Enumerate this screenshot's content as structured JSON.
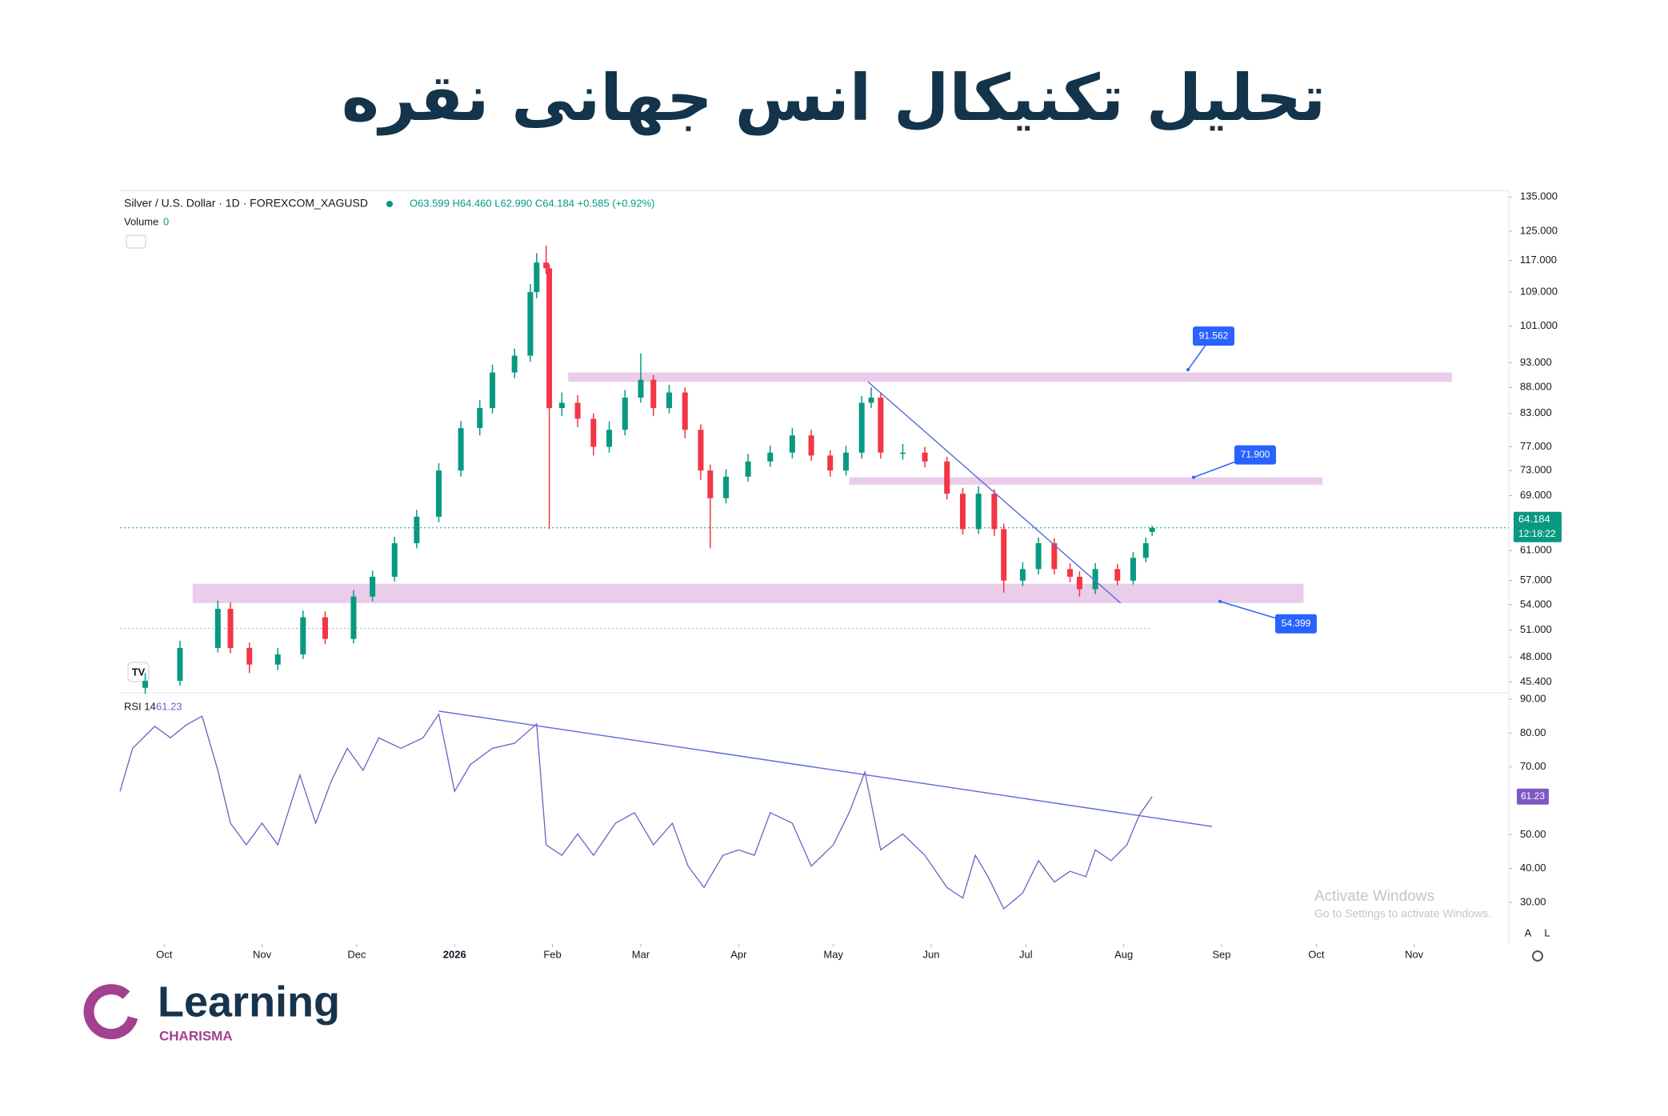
{
  "title": "تحلیل تکنیکال انس جهانی نقره",
  "chart_data": [
    {
      "type": "candlestick",
      "title": "Silver / U.S. Dollar · 1D · FOREXCOM_XAGUSD",
      "ohlc_text": "O63.599 H64.460 L62.990 C64.184 +0.585 (+0.92%)",
      "volume_label": "Volume",
      "volume": 0,
      "up_color": "#089981",
      "down_color": "#f23645",
      "log_scale": true,
      "xlim": [
        -14,
        426
      ],
      "ylim": [
        44.3,
        137
      ],
      "yticks": [
        {
          "value": 135,
          "label": "135.000"
        },
        {
          "value": 125,
          "label": "125.000"
        },
        {
          "value": 117,
          "label": "117.000"
        },
        {
          "value": 109,
          "label": "109.000"
        },
        {
          "value": 101,
          "label": "101.000"
        },
        {
          "value": 93,
          "label": "93.000"
        },
        {
          "value": 88,
          "label": "88.000"
        },
        {
          "value": 83,
          "label": "83.000"
        },
        {
          "value": 77,
          "label": "77.000"
        },
        {
          "value": 73,
          "label": "73.000"
        },
        {
          "value": 69,
          "label": "69.000"
        },
        {
          "value": 61,
          "label": "61.000"
        },
        {
          "value": 57,
          "label": "57.000"
        },
        {
          "value": 54,
          "label": "54.000"
        },
        {
          "value": 51,
          "label": "51.000"
        },
        {
          "value": 48,
          "label": "48.000"
        },
        {
          "value": 45.4,
          "label": "45.400"
        }
      ],
      "x": [
        -6,
        5,
        17,
        21,
        27,
        36,
        44,
        51,
        60,
        66,
        73,
        80,
        87,
        94,
        100,
        104,
        111,
        116,
        118,
        121,
        122,
        126,
        131,
        136,
        141,
        146,
        151,
        155,
        160,
        165,
        170,
        173,
        178,
        185,
        192,
        199,
        205,
        211,
        216,
        221,
        224,
        227,
        234,
        241,
        248,
        253,
        258,
        263,
        266,
        272,
        277,
        282,
        287,
        290,
        295,
        302,
        307,
        311,
        313
      ],
      "open": [
        44.8,
        45.5,
        49,
        53.5,
        49,
        47.2,
        48.3,
        52.5,
        50,
        55,
        57.5,
        62,
        65.8,
        73,
        80.3,
        84,
        91,
        94.5,
        109,
        116.5,
        115,
        84,
        85,
        82,
        77,
        80,
        86,
        89.5,
        84,
        87,
        80,
        73,
        68.6,
        72,
        74.5,
        76,
        79,
        75.5,
        73,
        76,
        85,
        86,
        76,
        76,
        74.5,
        69.3,
        64,
        69.3,
        64,
        57,
        58.5,
        62,
        58.5,
        57.5,
        55.9,
        58.5,
        57,
        60,
        63.599
      ],
      "high": [
        46.3,
        49.8,
        54.5,
        54.3,
        49.6,
        49,
        53.3,
        53.2,
        55.8,
        58.3,
        62.9,
        66.8,
        74.2,
        81.6,
        85.5,
        92.6,
        96,
        111,
        119,
        121,
        116,
        87,
        86.5,
        83,
        81.5,
        87.5,
        95,
        90.5,
        88.5,
        88,
        81,
        74,
        73.2,
        75.8,
        77.2,
        80.3,
        80,
        76.4,
        77.2,
        86.3,
        88,
        86.8,
        77.5,
        77,
        75.3,
        70.2,
        70.5,
        70,
        64.8,
        59.4,
        62.8,
        62.7,
        59.3,
        58.2,
        59.3,
        59.2,
        60.8,
        62.8,
        64.46
      ],
      "low": [
        44.2,
        45,
        48.5,
        48.4,
        46.3,
        46.6,
        47.8,
        49.4,
        49.5,
        54.4,
        56.9,
        61.3,
        65,
        72,
        79,
        83,
        89.8,
        93.2,
        107.5,
        113.5,
        64,
        82.5,
        80.5,
        75.5,
        76,
        79,
        85,
        82.5,
        83,
        78.5,
        71.5,
        61.3,
        67.8,
        71.2,
        73.6,
        75,
        74.6,
        72,
        72.2,
        75,
        84,
        75,
        74.8,
        73.5,
        68.4,
        63.2,
        63.3,
        63,
        55.5,
        56.3,
        57.8,
        57.8,
        56.8,
        55,
        55.3,
        56.4,
        56.5,
        59.4,
        62.99
      ],
      "close": [
        45.5,
        49,
        53.5,
        49,
        47.2,
        48.3,
        52.5,
        50,
        55,
        57.5,
        62,
        65.8,
        73,
        80.3,
        84,
        91,
        94.5,
        109,
        116.5,
        115,
        84,
        85,
        82,
        77,
        80,
        86,
        89.5,
        84,
        87,
        80,
        73,
        68.6,
        72,
        74.5,
        76,
        79,
        75.5,
        73,
        76,
        85,
        86,
        76,
        76,
        74.5,
        69.3,
        64,
        69.3,
        64,
        57,
        58.5,
        62,
        58.5,
        57.5,
        55.9,
        58.5,
        57,
        60,
        62,
        64.184
      ],
      "zones": [
        {
          "from": 128,
          "to": 408,
          "low": 89.1,
          "high": 91
        },
        {
          "from": 217,
          "to": 367,
          "low": 70.7,
          "high": 71.9
        },
        {
          "from": 9,
          "to": 361,
          "low": 54.2,
          "high": 56.6
        }
      ],
      "zone_color": "#e9cdea",
      "trendline": {
        "x": [
          223,
          303
        ],
        "y": [
          89.1,
          54.2
        ],
        "color": "#6272d9"
      },
      "price_labels": [
        91.562,
        {
          "value": 71.9,
          "label": "71.900"
        },
        54.399
      ],
      "reference_line": 51.2,
      "last_price": 64.184,
      "countdown": "12:18:22"
    },
    {
      "type": "line",
      "xlim": [
        -14,
        426
      ],
      "ylim": [
        19.6,
        91.9
      ],
      "yticks": [
        {
          "value": 90,
          "label": "90.00"
        },
        {
          "value": 80,
          "label": "80.00"
        },
        {
          "value": 70,
          "label": "70.00"
        },
        {
          "value": 50,
          "label": "50.00"
        },
        {
          "value": 40,
          "label": "40.00"
        },
        {
          "value": 30,
          "label": "30.00"
        }
      ],
      "xticks": [
        {
          "value": 0,
          "label": "Oct"
        },
        {
          "value": 31,
          "label": "Nov"
        },
        {
          "value": 61,
          "label": "Dec"
        },
        {
          "value": 92,
          "label": "2026"
        },
        {
          "value": 123,
          "label": "Feb"
        },
        {
          "value": 151,
          "label": "Mar"
        },
        {
          "value": 182,
          "label": "Apr"
        },
        {
          "value": 212,
          "label": "May"
        },
        {
          "value": 243,
          "label": "Jun"
        },
        {
          "value": 273,
          "label": "Jul"
        },
        {
          "value": 304,
          "label": "Aug"
        },
        {
          "value": 335,
          "label": "Sep"
        },
        {
          "value": 365,
          "label": "Oct"
        },
        {
          "value": 396,
          "label": "Nov"
        }
      ],
      "x": [
        -14,
        -10,
        -3,
        2,
        7,
        12,
        17,
        21,
        26,
        31,
        36,
        43,
        48,
        53,
        58,
        63,
        68,
        75,
        82,
        87,
        92,
        97,
        104,
        111,
        118,
        121,
        126,
        131,
        136,
        143,
        149,
        155,
        161,
        166,
        171,
        177,
        182,
        187,
        192,
        199,
        205,
        212,
        217,
        222,
        227,
        234,
        241,
        248,
        253,
        257,
        261,
        266,
        272,
        277,
        282,
        287,
        292,
        295,
        300,
        305,
        309,
        313
      ],
      "series": [
        {
          "name": "RSI 14",
          "color": "#7e57c2",
          "values": [
            62.8,
            75.5,
            82,
            78.6,
            82.4,
            85,
            69,
            53.4,
            47,
            53.4,
            47,
            67.6,
            53.4,
            66,
            75.5,
            69,
            78.6,
            75.5,
            78.6,
            85.6,
            62.8,
            70.7,
            75.5,
            77,
            82.7,
            47,
            43.9,
            50.2,
            43.9,
            53.4,
            56.5,
            47,
            53.4,
            40.7,
            34.4,
            43.9,
            45.5,
            43.9,
            56.5,
            53.4,
            40.7,
            47,
            56.5,
            68.5,
            45.5,
            50.2,
            43.9,
            34.4,
            31.3,
            43.9,
            37.6,
            28.1,
            32.8,
            42.3,
            36,
            39.2,
            37.6,
            45.5,
            42.3,
            47,
            55.9,
            61.23
          ]
        }
      ],
      "trendline": {
        "x": [
          87,
          332
        ],
        "y": [
          86.5,
          52.4
        ],
        "color": "#6272d9"
      }
    }
  ],
  "watermark": {
    "title": "Activate Windows",
    "subtitle": "Go to Settings to activate Windows."
  },
  "scale_buttons": [
    "A",
    "L"
  ],
  "logo": {
    "name": "Learning",
    "sub": "CHARISMA"
  }
}
